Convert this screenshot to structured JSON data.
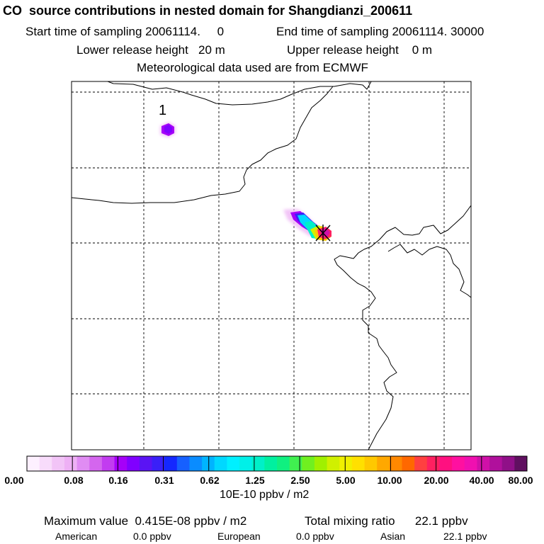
{
  "header": {
    "title": "CO  source contributions in nested domain for Shangdianzi_200611",
    "start": "Start time of sampling 20061114.     0",
    "end": "End time of sampling 20061114. 30000",
    "lower": "Lower release height   20 m",
    "upper": "Upper release height    0 m",
    "met": "Meteorological data used are from ECMWF"
  },
  "map": {
    "marker_label": "1"
  },
  "colorbar": {
    "ticks": [
      "0.00",
      "0.08",
      "0.16",
      "0.31",
      "0.62",
      "1.25",
      "2.50",
      "5.00",
      "10.00",
      "20.00",
      "40.00",
      "80.00"
    ],
    "unit": "10E-10 ppbv / m2",
    "colors": [
      "#fdf0ff",
      "#f8dcfb",
      "#f2c4f7",
      "#eeb0f5",
      "#e08cf3",
      "#d466ee",
      "#c23cf0",
      "#a500f8",
      "#8000ff",
      "#5a14f4",
      "#3a20f8",
      "#1428ff",
      "#1660ff",
      "#0a8cff",
      "#00b4ff",
      "#00d8ff",
      "#00f0ff",
      "#00f0e8",
      "#00f0c8",
      "#00f0a0",
      "#10f080",
      "#40f050",
      "#70f020",
      "#a0f000",
      "#d0f000",
      "#f0f000",
      "#ffe000",
      "#ffc800",
      "#ffa800",
      "#ff8800",
      "#ff6800",
      "#ff4040",
      "#ff2060",
      "#ff1080",
      "#ff10a0",
      "#f010b0",
      "#d010a8",
      "#b0109c",
      "#901088",
      "#601060"
    ]
  },
  "footer": {
    "max_value": "Maximum value  0.415E-08 ppbv / m2",
    "total_mixing": "Total mixing ratio      22.1 ppbv",
    "american_label": "American",
    "american_value": "0.0 ppbv",
    "european_label": "European",
    "european_value": "0.0 ppbv",
    "asian_label": "Asian",
    "asian_value": "22.1 ppbv"
  }
}
